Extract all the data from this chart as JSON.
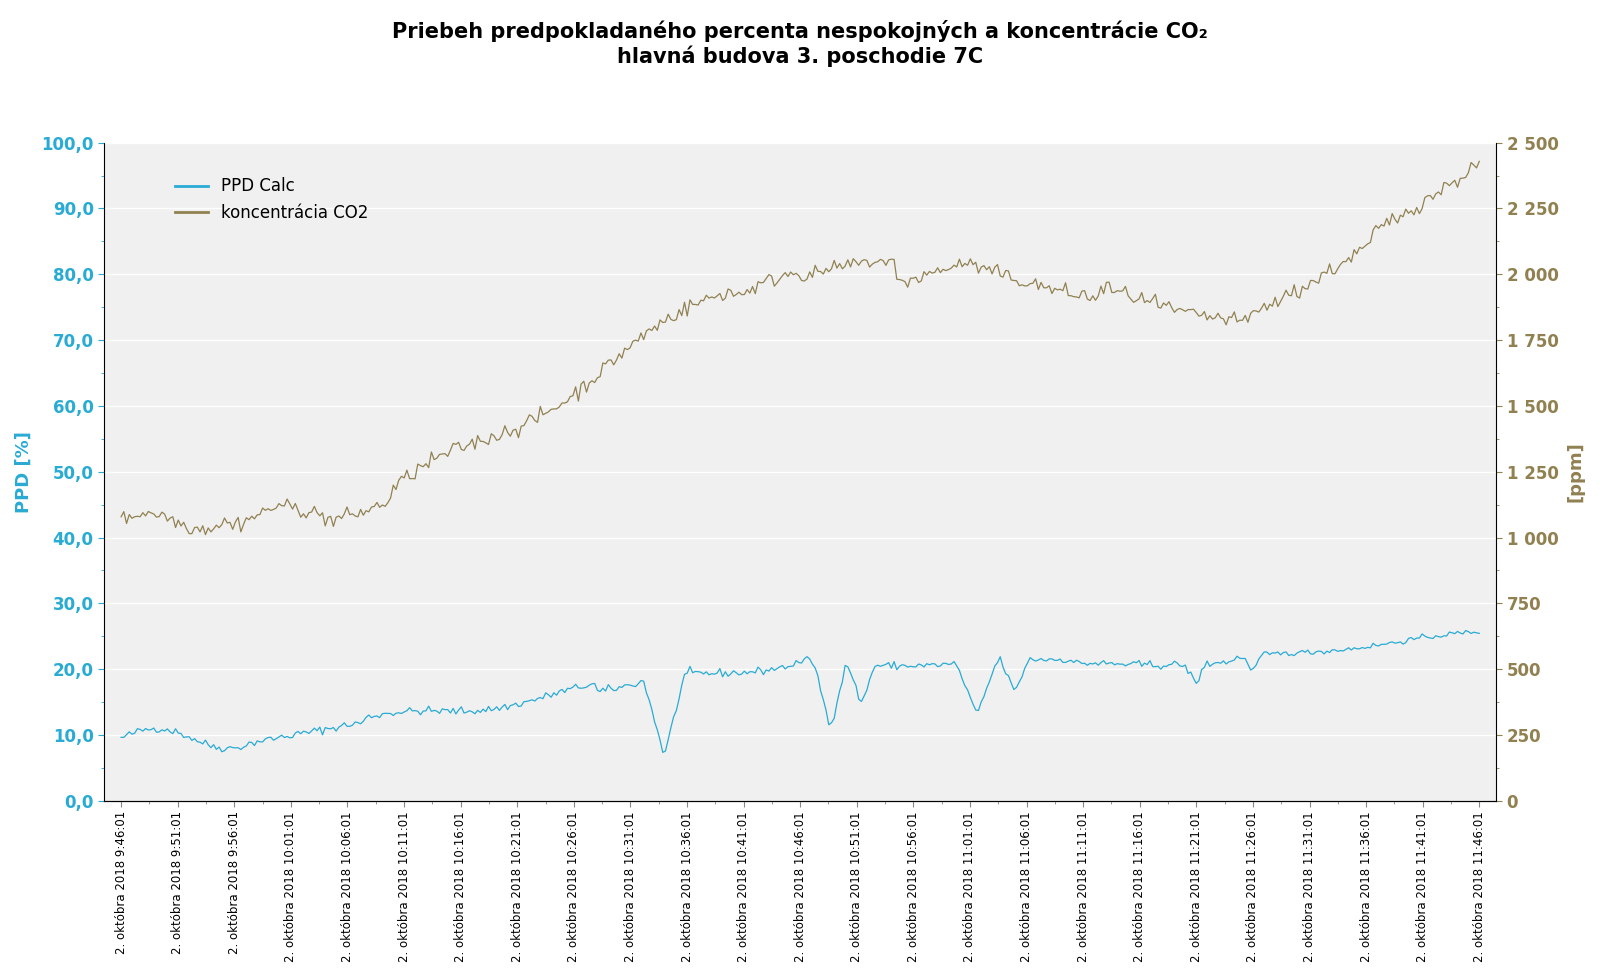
{
  "title_line1": "Priebeh predpokladaného percenta nespokojných a koncentrácie CO₂",
  "title_line2": "hlavná budova 3. poschodie 7C",
  "ylabel_left": "PPD [%]",
  "ylabel_right": "[ppm]",
  "legend_ppd": "PPD Calc",
  "legend_co2": "koncentrácia CO2",
  "ppd_color": "#29ABD4",
  "co2_color": "#918151",
  "ylim_left": [
    0,
    100
  ],
  "ylim_right": [
    0,
    2500
  ],
  "yticks_left": [
    0.0,
    10.0,
    20.0,
    30.0,
    40.0,
    50.0,
    60.0,
    70.0,
    80.0,
    90.0,
    100.0
  ],
  "ytick_labels_left": [
    "0,0",
    "10,0",
    "20,0",
    "30,0",
    "40,0",
    "50,0",
    "60,0",
    "70,0",
    "80,0",
    "90,0",
    "100,0"
  ],
  "yticks_right": [
    0,
    250,
    500,
    750,
    1000,
    1250,
    1500,
    1750,
    2000,
    2250,
    2500
  ],
  "ytick_labels_right": [
    "0",
    "250",
    "500",
    "750",
    "1 000",
    "1 250",
    "1 500",
    "1 750",
    "2 000",
    "2 250",
    "2 500"
  ],
  "background_color": "#ffffff",
  "plot_bg_color": "#f0f0f0",
  "grid_color": "#ffffff",
  "title_color": "#000000",
  "tick_label_color_left": "#29ABD4",
  "tick_label_color_right": "#918151",
  "x_labels": [
    "2. októbra 2018 9:46:01",
    "2. októbra 2018 9:51:01",
    "2. októbra 2018 9:56:01",
    "2. októbra 2018 10:01:01",
    "2. októbra 2018 10:06:01",
    "2. októbra 2018 10:11:01",
    "2. októbra 2018 10:16:01",
    "2. októbra 2018 10:21:01",
    "2. októbra 2018 10:26:01",
    "2. októbra 2018 10:31:01",
    "2. októbra 2018 10:36:01",
    "2. októbra 2018 10:41:01",
    "2. októbra 2018 10:46:01",
    "2. októbra 2018 10:51:01",
    "2. októbra 2018 10:56:01",
    "2. októbra 2018 11:01:01",
    "2. októbra 2018 11:06:01",
    "2. októbra 2018 11:11:01",
    "2. októbra 2018 11:16:01",
    "2. októbra 2018 11:21:01",
    "2. októbra 2018 11:26:01",
    "2. októbra 2018 11:31:01",
    "2. októbra 2018 11:36:01",
    "2. októbra 2018 11:41:01",
    "2. októbra 2018 11:46:01"
  ]
}
